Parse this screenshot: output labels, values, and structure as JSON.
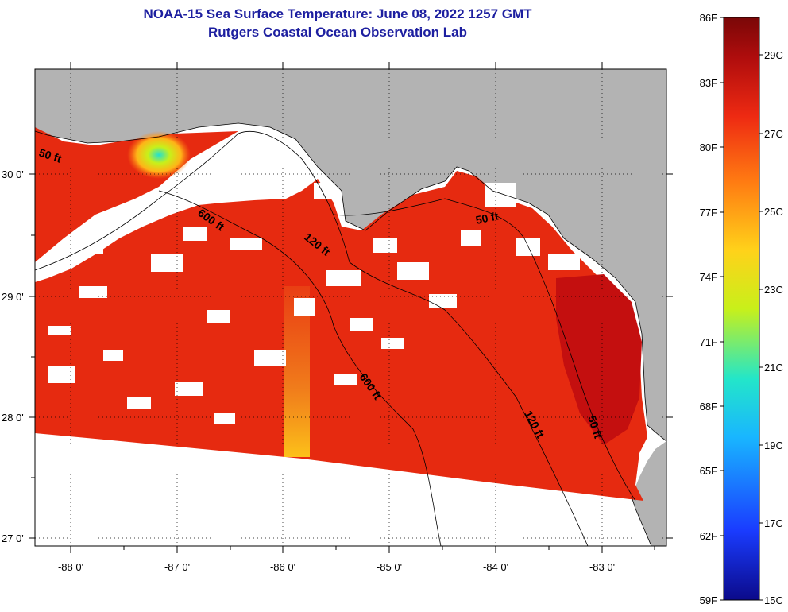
{
  "title": {
    "line1": "NOAA-15 Sea Surface Temperature:  June 08, 2022 1257 GMT",
    "line2": "Rutgers Coastal Ocean Observation Lab"
  },
  "map": {
    "longitude_ticks": [
      "-88 0'",
      "-87 0'",
      "-86 0'",
      "-85 0'",
      "-84 0'",
      "-83 0'"
    ],
    "latitude_ticks": [
      "30 0'",
      "29 0'",
      "28 0'",
      "27 0'"
    ],
    "contour_labels": [
      "50 ft",
      "600 ft",
      "120 ft",
      "50 ft",
      "600 ft",
      "120 ft",
      "50 ft"
    ],
    "colors": {
      "land": "#b3b3b3",
      "no_data": "#ffffff",
      "sst_main": "#e62a10",
      "sst_warm": "#c40f0f",
      "sst_cool": "#f07018"
    }
  },
  "colorbar": {
    "fahrenheit_labels": [
      "86F",
      "83F",
      "80F",
      "77F",
      "74F",
      "71F",
      "68F",
      "65F",
      "62F",
      "59F"
    ],
    "celsius_labels": [
      "29C",
      "27C",
      "25C",
      "23C",
      "21C",
      "19C",
      "17C",
      "15C"
    ],
    "colors": [
      "#0b0a8a",
      "#1a3cff",
      "#19b6ff",
      "#23e6c9",
      "#c8f01a",
      "#ffd21a",
      "#ff7a12",
      "#ee2a12",
      "#b00d0d",
      "#7a0707"
    ]
  }
}
